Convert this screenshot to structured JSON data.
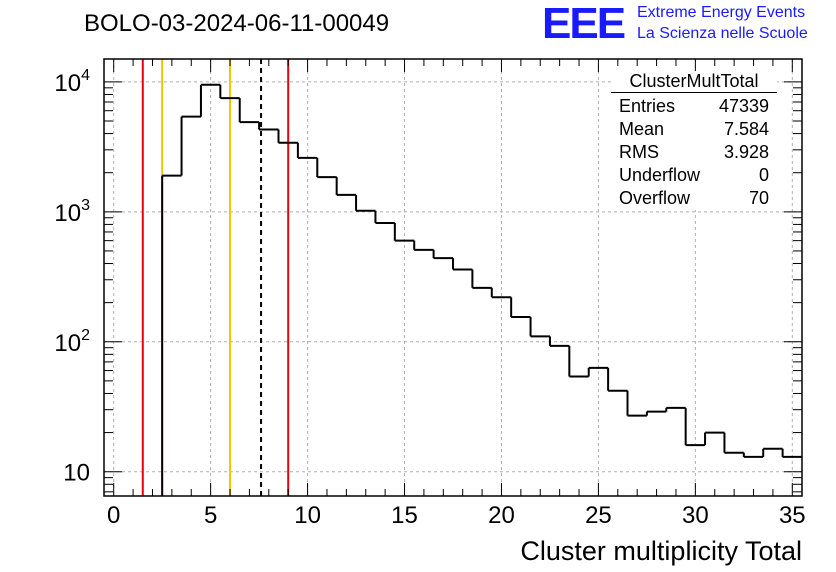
{
  "title": "BOLO-03-2024-06-11-00049",
  "logo": {
    "mark": "EEE",
    "line1": "Extreme Energy Events",
    "line2": "La Scienza nelle Scuole",
    "color": "#1a1aff"
  },
  "stats_box": {
    "title": "ClusterMultTotal",
    "rows": [
      {
        "label": "Entries",
        "value": "47339"
      },
      {
        "label": "Mean",
        "value": "7.584"
      },
      {
        "label": "RMS",
        "value": "3.928"
      },
      {
        "label": "Underflow",
        "value": "0"
      },
      {
        "label": "Overflow",
        "value": "70"
      }
    ]
  },
  "chart_data": {
    "type": "histogram",
    "title": "BOLO-03-2024-06-11-00049",
    "xlabel": "Cluster multiplicity Total",
    "ylabel": "",
    "xlim": [
      -0.5,
      35.5
    ],
    "ylim": [
      6.5,
      15000
    ],
    "yscale": "log",
    "grid": true,
    "bin_width": 1,
    "x_ticks": [
      0,
      5,
      10,
      15,
      20,
      25,
      30,
      35
    ],
    "y_ticks": [
      {
        "value": 10,
        "label": "10"
      },
      {
        "value": 100,
        "label": "10",
        "exp": "2"
      },
      {
        "value": 1000,
        "label": "10",
        "exp": "3"
      },
      {
        "value": 10000,
        "label": "10",
        "exp": "4"
      }
    ],
    "bins": [
      {
        "x": 3,
        "y": 1900
      },
      {
        "x": 4,
        "y": 5400
      },
      {
        "x": 5,
        "y": 9500
      },
      {
        "x": 6,
        "y": 7500
      },
      {
        "x": 7,
        "y": 4900
      },
      {
        "x": 8,
        "y": 4300
      },
      {
        "x": 9,
        "y": 3400
      },
      {
        "x": 10,
        "y": 2600
      },
      {
        "x": 11,
        "y": 1850
      },
      {
        "x": 12,
        "y": 1350
      },
      {
        "x": 13,
        "y": 1020
      },
      {
        "x": 14,
        "y": 820
      },
      {
        "x": 15,
        "y": 600
      },
      {
        "x": 16,
        "y": 510
      },
      {
        "x": 17,
        "y": 440
      },
      {
        "x": 18,
        "y": 360
      },
      {
        "x": 19,
        "y": 260
      },
      {
        "x": 20,
        "y": 220
      },
      {
        "x": 21,
        "y": 155
      },
      {
        "x": 22,
        "y": 110
      },
      {
        "x": 23,
        "y": 93
      },
      {
        "x": 24,
        "y": 54
      },
      {
        "x": 25,
        "y": 63
      },
      {
        "x": 26,
        "y": 42
      },
      {
        "x": 27,
        "y": 27
      },
      {
        "x": 28,
        "y": 29
      },
      {
        "x": 29,
        "y": 31
      },
      {
        "x": 30,
        "y": 16
      },
      {
        "x": 31,
        "y": 20
      },
      {
        "x": 32,
        "y": 14
      },
      {
        "x": 33,
        "y": 13
      },
      {
        "x": 34,
        "y": 15
      },
      {
        "x": 35,
        "y": 13
      }
    ],
    "markers": [
      {
        "x": 1.5,
        "color": "#e8000b",
        "style": "solid"
      },
      {
        "x": 2.5,
        "color": "#f5c400",
        "style": "solid"
      },
      {
        "x": 6.0,
        "color": "#f5c400",
        "style": "solid"
      },
      {
        "x": 7.6,
        "color": "#000000",
        "style": "dashed"
      },
      {
        "x": 9.0,
        "color": "#e8000b",
        "style": "solid"
      }
    ]
  }
}
